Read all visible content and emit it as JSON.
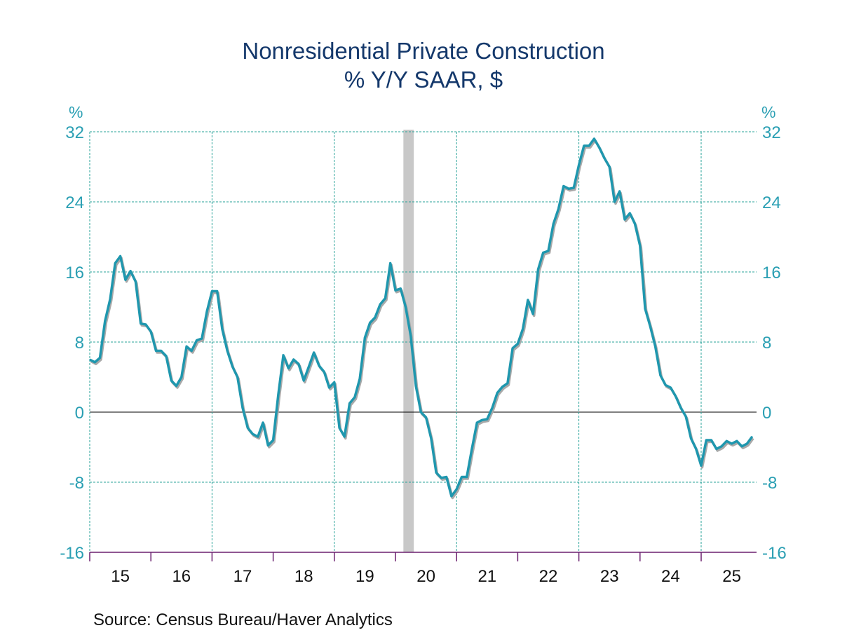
{
  "chart_data": {
    "type": "line",
    "title": "Nonresidential Private Construction",
    "subtitle": "% Y/Y   SAAR, $",
    "ylabel_left": "%",
    "ylabel_right": "%",
    "xlabel": "",
    "ylim": [
      -16,
      32
    ],
    "yticks": [
      32,
      24,
      16,
      8,
      0,
      -8,
      -16
    ],
    "ytick_labels": [
      "32",
      "24",
      "16",
      "8",
      "0",
      "-8",
      "-16"
    ],
    "xlim": [
      2015.0,
      2025.92
    ],
    "xtick_labels": [
      "15",
      "16",
      "17",
      "18",
      "19",
      "20",
      "21",
      "22",
      "23",
      "24",
      "25"
    ],
    "x_start": "2015-01",
    "frequency": "monthly",
    "grid": true,
    "recession_shading": [
      {
        "start": 2020.13,
        "end": 2020.3
      }
    ],
    "series": [
      {
        "name": "Nonresidential Private Construction % Y/Y",
        "color": "#1f97ae",
        "values": [
          6.0,
          5.7,
          6.2,
          10.4,
          12.9,
          17.0,
          17.8,
          15.1,
          16.1,
          14.9,
          10.1,
          10.0,
          9.2,
          7.0,
          7.0,
          6.4,
          3.6,
          3.0,
          4.0,
          7.5,
          7.0,
          8.2,
          8.4,
          11.5,
          13.8,
          13.8,
          9.5,
          7.0,
          5.2,
          4.0,
          0.5,
          -1.8,
          -2.5,
          -2.8,
          -1.2,
          -3.8,
          -3.2,
          2.0,
          6.5,
          5.0,
          6.0,
          5.5,
          3.6,
          5.2,
          6.8,
          5.3,
          4.6,
          2.8,
          3.4,
          -1.8,
          -2.8,
          1.0,
          1.7,
          3.8,
          8.5,
          10.2,
          10.8,
          12.3,
          13.0,
          17.0,
          13.9,
          14.1,
          12.0,
          8.7,
          3.0,
          0.0,
          -0.6,
          -3.0,
          -6.9,
          -7.5,
          -7.4,
          -9.6,
          -8.8,
          -7.4,
          -7.4,
          -4.2,
          -1.2,
          -0.9,
          -0.8,
          0.5,
          2.2,
          2.9,
          3.3,
          7.3,
          7.8,
          9.5,
          12.8,
          11.2,
          16.3,
          18.2,
          18.4,
          21.5,
          23.2,
          25.8,
          25.5,
          25.6,
          28.2,
          30.4,
          30.4,
          31.2,
          30.2,
          29.0,
          28.0,
          24.0,
          25.2,
          22.0,
          22.7,
          21.5,
          19.0,
          11.8,
          9.8,
          7.5,
          4.2,
          3.1,
          2.8,
          1.8,
          0.5,
          -0.5,
          -3.0,
          -4.2,
          -6.1,
          -3.2,
          -3.2,
          -4.2,
          -3.9,
          -3.3,
          -3.6,
          -3.3,
          -3.9,
          -3.6,
          -2.8
        ]
      }
    ],
    "source": "Source:  Census Bureau/Haver Analytics"
  },
  "colors": {
    "title": "#14386b",
    "axis_labels": "#2a9fb3",
    "grid": "#2aa39a",
    "line": "#1f97ae",
    "shadow": "#a9a9a9",
    "recession": "#c8c8c8",
    "x_axis": "#6a1f6e",
    "zero_line": "#000000"
  }
}
